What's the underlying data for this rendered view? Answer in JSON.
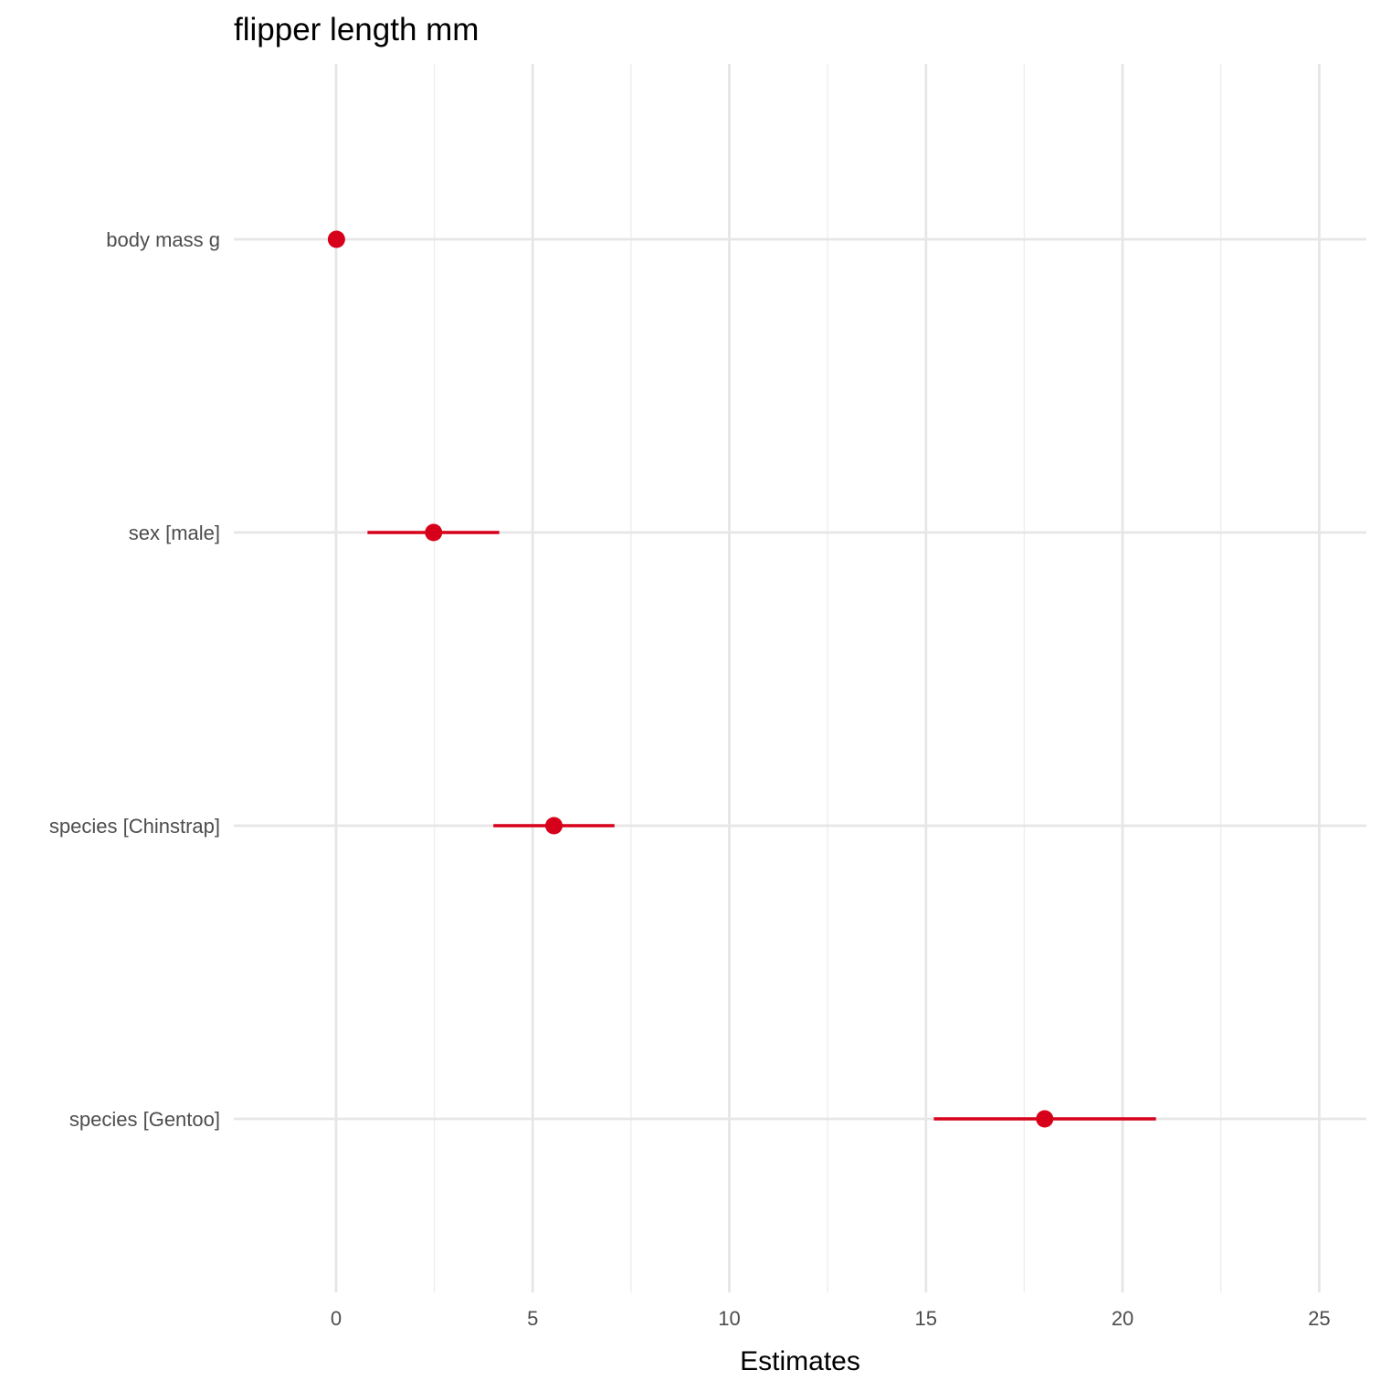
{
  "chart_data": {
    "type": "scatter",
    "title": "flipper length mm",
    "xlabel": "Estimates",
    "ylabel": "",
    "xlim": [
      -2.6,
      26.2
    ],
    "x_ticks": [
      0,
      5,
      10,
      15,
      20,
      25
    ],
    "x_tick_labels": [
      "0",
      "5",
      "10",
      "15",
      "20",
      "25"
    ],
    "grid": true,
    "legend": "none",
    "color": "#d7001b",
    "terms": [
      {
        "label": "body mass g",
        "estimate": 0.01,
        "conf_low": 0.0,
        "conf_high": 0.01
      },
      {
        "label": "sex [male]",
        "estimate": 2.48,
        "conf_low": 0.8,
        "conf_high": 4.15
      },
      {
        "label": "species [Chinstrap]",
        "estimate": 5.54,
        "conf_low": 4.0,
        "conf_high": 7.08
      },
      {
        "label": "species [Gentoo]",
        "estimate": 18.02,
        "conf_low": 15.2,
        "conf_high": 20.85
      }
    ]
  }
}
